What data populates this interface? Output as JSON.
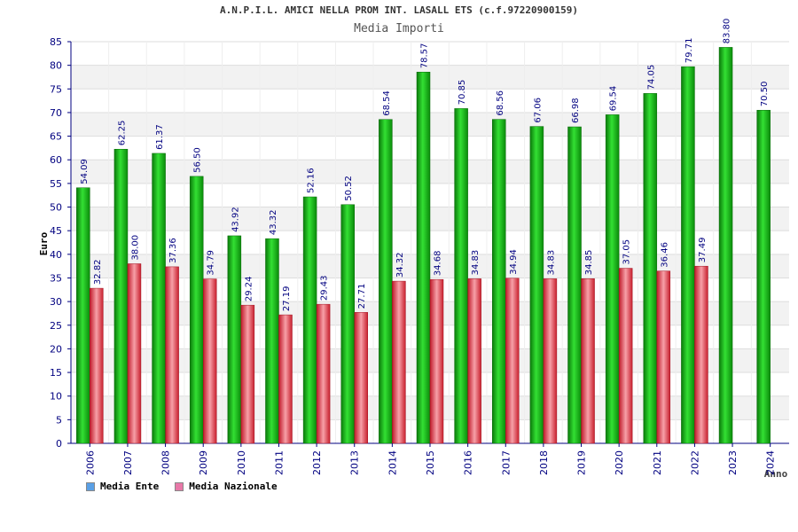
{
  "title": "A.N.P.I.L. AMICI NELLA PROM INT. LASALL ETS (c.f.97220900159)",
  "subtitle": "Media Importi",
  "colors": {
    "ente": "#18b818",
    "nazionale": "#e84b55",
    "legend_ente": "#5aa0e6",
    "legend_nazionale": "#e878a8",
    "tick_text": "#000080",
    "value_text": "#000080"
  },
  "chart_data": {
    "type": "bar",
    "title": "Media Importi",
    "xlabel": "Anno",
    "ylabel": "Euro",
    "ylim": [
      0,
      85
    ],
    "yticks": [
      0,
      5,
      10,
      15,
      20,
      25,
      30,
      35,
      40,
      45,
      50,
      55,
      60,
      65,
      70,
      75,
      80,
      85
    ],
    "grid": true,
    "legend_position": "bottom-left",
    "categories": [
      "2006",
      "2007",
      "2008",
      "2009",
      "2010",
      "2011",
      "2012",
      "2013",
      "2014",
      "2015",
      "2016",
      "2017",
      "2018",
      "2019",
      "2020",
      "2021",
      "2022",
      "2023",
      "2024"
    ],
    "series": [
      {
        "name": "Media Ente",
        "values": [
          54.09,
          62.25,
          61.37,
          56.5,
          43.92,
          43.32,
          52.16,
          50.52,
          68.54,
          78.57,
          70.85,
          68.56,
          67.06,
          66.98,
          69.54,
          74.05,
          79.71,
          83.8,
          70.5
        ],
        "labels": [
          "54.09",
          "62.25",
          "61.37",
          "56.50",
          "43.92",
          "43.32",
          "52.16",
          "50.52",
          "68.54",
          "78.57",
          "70.85",
          "68.56",
          "67.06",
          "66.98",
          "69.54",
          "74.05",
          "79.71",
          "83.80",
          "70.50"
        ]
      },
      {
        "name": "Media Nazionale",
        "values": [
          32.82,
          38.0,
          37.36,
          34.79,
          29.24,
          27.19,
          29.43,
          27.71,
          34.32,
          34.68,
          34.83,
          34.94,
          34.83,
          34.85,
          37.05,
          36.46,
          37.49,
          null,
          null
        ],
        "labels": [
          "32.82",
          "38.00",
          "37.36",
          "34.79",
          "29.24",
          "27.19",
          "29.43",
          "27.71",
          "34.32",
          "34.68",
          "34.83",
          "34.94",
          "34.83",
          "34.85",
          "37.05",
          "36.46",
          "37.49",
          "",
          ""
        ]
      }
    ]
  }
}
